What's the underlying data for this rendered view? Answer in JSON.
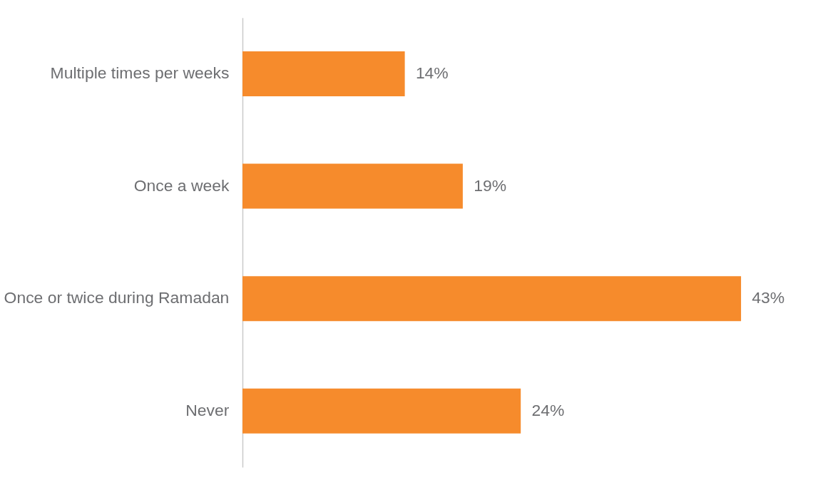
{
  "chart_data": {
    "type": "bar",
    "orientation": "horizontal",
    "categories": [
      "Multiple times per weeks",
      "Once a week",
      "Once or twice during Ramadan",
      "Never"
    ],
    "values": [
      14,
      19,
      43,
      24
    ],
    "value_labels": [
      "14%",
      "19%",
      "43%",
      "24%"
    ],
    "color": "#f68b2c"
  }
}
